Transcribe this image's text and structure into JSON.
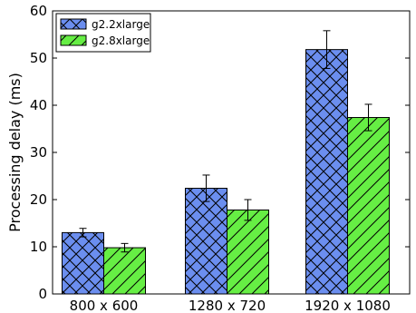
{
  "chart_data": {
    "type": "bar",
    "categories": [
      "800 x 600",
      "1280 x 720",
      "1920 x 1080"
    ],
    "series": [
      {
        "name": "g2.2xlarge",
        "values": [
          13.0,
          22.4,
          51.8
        ],
        "error": [
          0.9,
          2.8,
          4.0
        ],
        "color": "#6B8EEF",
        "hatch": "crosshatch"
      },
      {
        "name": "g2.8xlarge",
        "values": [
          9.8,
          17.8,
          37.4
        ],
        "error": [
          0.9,
          2.2,
          2.8
        ],
        "color": "#66EE44",
        "hatch": "diagonal"
      }
    ],
    "title": "",
    "xlabel": "",
    "ylabel": "Processing delay (ms)",
    "ylim": [
      0,
      60
    ],
    "yticks": [
      0,
      10,
      20,
      30,
      40,
      50,
      60
    ],
    "grid": false,
    "legend_position": "top-left"
  }
}
